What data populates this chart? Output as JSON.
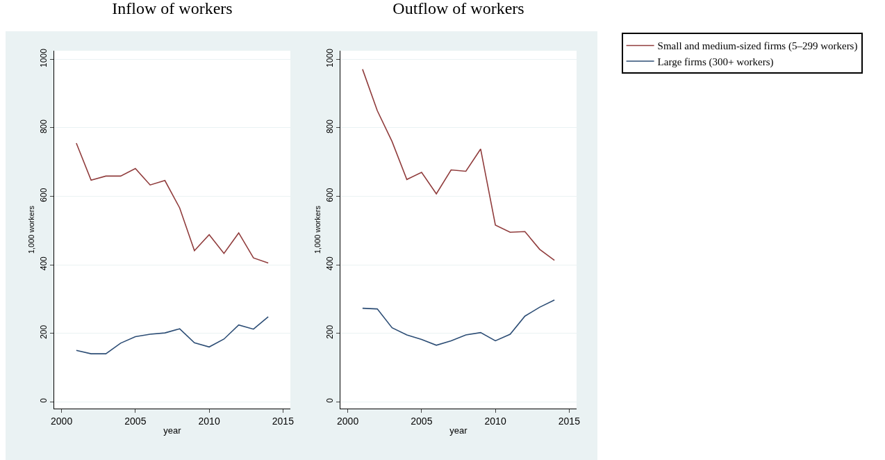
{
  "chart_data": [
    {
      "type": "line",
      "title": "Inflow of workers",
      "xlabel": "year",
      "ylabel": "1,000 workers",
      "x": [
        2001,
        2002,
        2003,
        2004,
        2005,
        2006,
        2007,
        2008,
        2009,
        2010,
        2011,
        2012,
        2013,
        2014
      ],
      "series": [
        {
          "color": "#903c3c",
          "values": [
            755,
            647,
            659,
            659,
            681,
            633,
            646,
            566,
            441,
            488,
            433,
            493,
            420,
            405
          ]
        },
        {
          "color": "#2c4d75",
          "values": [
            150,
            140,
            140,
            171,
            190,
            197,
            201,
            213,
            172,
            160,
            183,
            224,
            212,
            248
          ]
        }
      ],
      "xlim": [
        1999.5,
        2015.5
      ],
      "xticks": [
        2000,
        2005,
        2010,
        2015
      ],
      "ylim": [
        -20,
        1025
      ],
      "yticks": [
        0,
        200,
        400,
        600,
        800,
        1000
      ],
      "grid": "y",
      "legend": false
    },
    {
      "type": "line",
      "title": "Outflow of workers",
      "xlabel": "year",
      "ylabel": "1,000 workers",
      "x": [
        2001,
        2002,
        2003,
        2004,
        2005,
        2006,
        2007,
        2008,
        2009,
        2010,
        2011,
        2012,
        2013,
        2014
      ],
      "series": [
        {
          "name": "Small and medium-sized firms (5–299 workers)",
          "color": "#903c3c",
          "values": [
            971,
            850,
            760,
            649,
            670,
            607,
            677,
            673,
            738,
            516,
            495,
            497,
            445,
            413
          ]
        },
        {
          "name": "Large firms (300+ workers)",
          "color": "#2c4d75",
          "values": [
            273,
            271,
            216,
            195,
            182,
            165,
            178,
            195,
            202,
            178,
            197,
            250,
            276,
            297
          ]
        }
      ],
      "xlim": [
        1999.5,
        2015.5
      ],
      "xticks": [
        2000,
        2005,
        2010,
        2015
      ],
      "ylim": [
        -20,
        1025
      ],
      "yticks": [
        0,
        200,
        400,
        600,
        800,
        1000
      ],
      "grid": "y",
      "legend": "right"
    }
  ]
}
